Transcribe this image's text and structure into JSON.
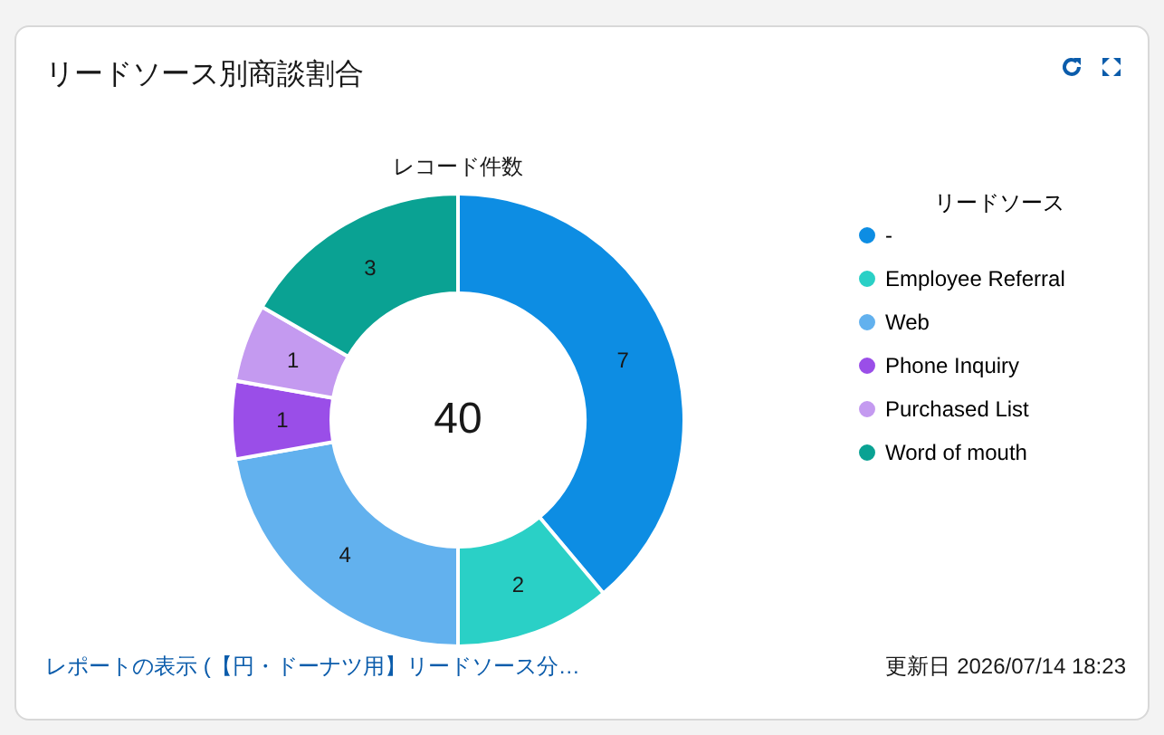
{
  "chart_data": {
    "type": "donut",
    "title": "リードソース別商談割合",
    "subtitle": "レコード件数",
    "legend_title": "リードソース",
    "categories": [
      "-",
      "Employee Referral",
      "Web",
      "Phone Inquiry",
      "Purchased List",
      "Word of mouth"
    ],
    "values": [
      7,
      2,
      4,
      1,
      1,
      3
    ],
    "colors": [
      "#0d8de3",
      "#2ad0c6",
      "#62b1ee",
      "#9a4ee8",
      "#c49af0",
      "#0aa293"
    ],
    "data_labels": true,
    "legend": "top right",
    "annotations": [
      "40",
      "レポートの表示 (【円・ドーナツ用】リードソース分…",
      "更新日 2026/07/14 18:23"
    ]
  }
}
